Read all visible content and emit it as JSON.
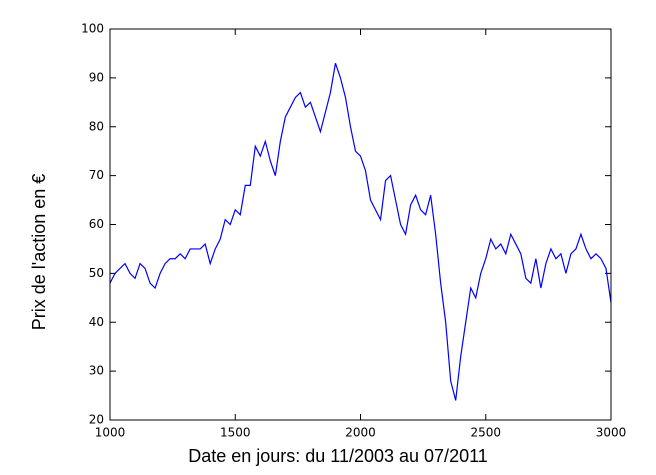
{
  "chart_data": {
    "type": "line",
    "x_label": "Date en jours: du 11/2003 au 07/2011",
    "y_label": "Prix de l'action en €",
    "x": [
      1000,
      1020,
      1040,
      1060,
      1080,
      1100,
      1120,
      1140,
      1160,
      1180,
      1200,
      1220,
      1240,
      1260,
      1280,
      1300,
      1320,
      1340,
      1360,
      1380,
      1400,
      1420,
      1440,
      1460,
      1480,
      1500,
      1520,
      1540,
      1560,
      1580,
      1600,
      1620,
      1640,
      1660,
      1680,
      1700,
      1720,
      1740,
      1760,
      1780,
      1800,
      1820,
      1840,
      1860,
      1880,
      1900,
      1920,
      1940,
      1960,
      1980,
      2000,
      2020,
      2040,
      2060,
      2080,
      2100,
      2120,
      2140,
      2160,
      2180,
      2200,
      2220,
      2240,
      2260,
      2280,
      2300,
      2320,
      2340,
      2360,
      2380,
      2400,
      2420,
      2440,
      2460,
      2480,
      2500,
      2520,
      2540,
      2560,
      2580,
      2600,
      2620,
      2640,
      2660,
      2680,
      2700,
      2720,
      2740,
      2760,
      2780,
      2800,
      2820,
      2840,
      2860,
      2880,
      2900,
      2920,
      2940,
      2960,
      2980,
      3000
    ],
    "series": [
      {
        "color": "#0000ff",
        "values": [
          48,
          50,
          51,
          52,
          50,
          49,
          52,
          51,
          48,
          47,
          50,
          52,
          53,
          53,
          54,
          53,
          55,
          55,
          55,
          56,
          52,
          55,
          57,
          61,
          60,
          63,
          62,
          68,
          68,
          76,
          74,
          77,
          73,
          70,
          77,
          82,
          84,
          86,
          87,
          84,
          85,
          82,
          79,
          83,
          87,
          93,
          90,
          86,
          80,
          75,
          74,
          71,
          65,
          63,
          61,
          69,
          70,
          65,
          60,
          58,
          64,
          66,
          63,
          62,
          66,
          58,
          48,
          40,
          28,
          24,
          33,
          40,
          47,
          45,
          50,
          53,
          57,
          55,
          56,
          54,
          58,
          56,
          54,
          49,
          48,
          53,
          47,
          52,
          55,
          53,
          54,
          50,
          54,
          55,
          58,
          55,
          53,
          54,
          53,
          51,
          44
        ]
      }
    ],
    "xlim": [
      1000,
      3000
    ],
    "xticks": [
      1000,
      1500,
      2000,
      2500,
      3000
    ],
    "ylim": [
      20,
      100
    ],
    "yticks": [
      20,
      30,
      40,
      50,
      60,
      70,
      80,
      90,
      100
    ]
  }
}
